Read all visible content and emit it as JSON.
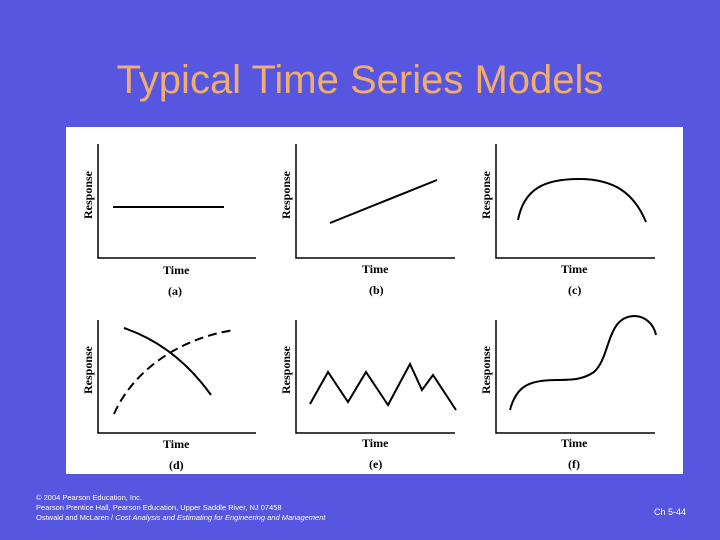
{
  "slide": {
    "title": "Typical Time Series Models",
    "colors": {
      "background": "#5656e0",
      "title": "#f0ad6e",
      "figure_bg": "#ffffff"
    }
  },
  "panels": [
    {
      "label": "(a)",
      "x_axis": "Time",
      "y_axis": "Response",
      "curve": "constant"
    },
    {
      "label": "(b)",
      "x_axis": "Time",
      "y_axis": "Response",
      "curve": "linear increasing"
    },
    {
      "label": "(c)",
      "x_axis": "Time",
      "y_axis": "Response",
      "curve": "rise and fall"
    },
    {
      "label": "(d)",
      "x_axis": "Time",
      "y_axis": "Response",
      "curve": "decreasing solid and increasing dashed crossing"
    },
    {
      "label": "(e)",
      "x_axis": "Time",
      "y_axis": "Response",
      "curve": "zigzag"
    },
    {
      "label": "(f)",
      "x_axis": "Time",
      "y_axis": "Response",
      "curve": "s-curve"
    }
  ],
  "footer": {
    "line1": "© 2004 Pearson Education, Inc.",
    "line2": "Pearson Prentice Hall, Pearson Education, Upper Saddle River, NJ 07458",
    "line3_prefix": "Ostwald and McLaren / ",
    "line3_title": "Cost Analysis and Estimating for Engineering and Management",
    "slide_number": "Ch 5-44"
  }
}
